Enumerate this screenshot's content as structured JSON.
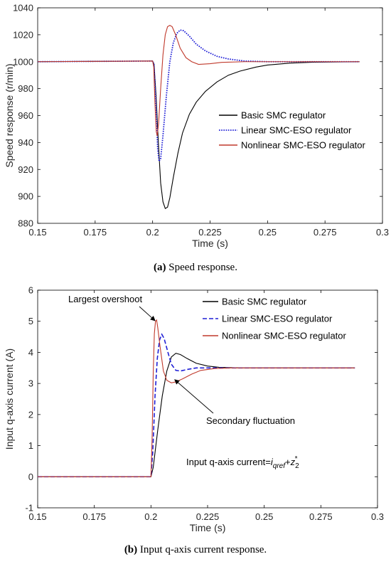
{
  "chart_data": [
    {
      "type": "line",
      "panel": "a",
      "caption_label": "(a)",
      "caption_text": " Speed response.",
      "xlabel": "Time (s)",
      "ylabel": "Speed response (r/min)",
      "xlim": [
        0.15,
        0.3
      ],
      "ylim": [
        880,
        1040
      ],
      "xticks": [
        "0.15",
        "0.175",
        "0.2",
        "0.225",
        "0.25",
        "0.275",
        "0.3"
      ],
      "yticks": [
        "880",
        "900",
        "920",
        "940",
        "960",
        "980",
        "1000",
        "1020",
        "1040"
      ],
      "legend_position": "center-right",
      "series": [
        {
          "name": "Basic SMC regulator",
          "color": "#000000",
          "style": "solid",
          "points": [
            [
              0.15,
              1000
            ],
            [
              0.2,
              1000.5
            ],
            [
              0.2006,
              998
            ],
            [
              0.2015,
              975
            ],
            [
              0.2025,
              940
            ],
            [
              0.2035,
              910
            ],
            [
              0.2045,
              896
            ],
            [
              0.2055,
              891
            ],
            [
              0.2065,
              892
            ],
            [
              0.2075,
              899
            ],
            [
              0.209,
              914
            ],
            [
              0.211,
              932
            ],
            [
              0.213,
              947
            ],
            [
              0.216,
              961
            ],
            [
              0.219,
              970
            ],
            [
              0.223,
              978
            ],
            [
              0.228,
              985
            ],
            [
              0.233,
              990
            ],
            [
              0.238,
              993
            ],
            [
              0.245,
              996
            ],
            [
              0.25,
              997.5
            ],
            [
              0.26,
              999
            ],
            [
              0.27,
              999.6
            ],
            [
              0.29,
              1000
            ]
          ]
        },
        {
          "name": "Linear SMC-ESO regulator",
          "color": "#1f1fd6",
          "style": "dotted",
          "points": [
            [
              0.15,
              1000
            ],
            [
              0.2,
              1000.5
            ],
            [
              0.2006,
              998
            ],
            [
              0.2013,
              975
            ],
            [
              0.2022,
              935
            ],
            [
              0.2028,
              926
            ],
            [
              0.2035,
              928
            ],
            [
              0.2045,
              945
            ],
            [
              0.206,
              975
            ],
            [
              0.2075,
              1000
            ],
            [
              0.209,
              1014
            ],
            [
              0.2105,
              1021
            ],
            [
              0.212,
              1023.5
            ],
            [
              0.2135,
              1023
            ],
            [
              0.216,
              1019
            ],
            [
              0.219,
              1013
            ],
            [
              0.223,
              1008
            ],
            [
              0.228,
              1004
            ],
            [
              0.233,
              1002
            ],
            [
              0.24,
              1000.5
            ],
            [
              0.25,
              1000
            ],
            [
              0.29,
              1000
            ]
          ]
        },
        {
          "name": "Nonlinear SMC-ESO regulator",
          "color": "#c0392b",
          "style": "solid",
          "points": [
            [
              0.15,
              1000
            ],
            [
              0.2,
              1000.5
            ],
            [
              0.2005,
              996
            ],
            [
              0.201,
              970
            ],
            [
              0.2016,
              948
            ],
            [
              0.202,
              945
            ],
            [
              0.2026,
              954
            ],
            [
              0.2035,
              980
            ],
            [
              0.2045,
              1005
            ],
            [
              0.2055,
              1020
            ],
            [
              0.2065,
              1026
            ],
            [
              0.2075,
              1027
            ],
            [
              0.2085,
              1026
            ],
            [
              0.21,
              1020
            ],
            [
              0.212,
              1010
            ],
            [
              0.2145,
              1003
            ],
            [
              0.217,
              1000
            ],
            [
              0.22,
              998
            ],
            [
              0.225,
              998.5
            ],
            [
              0.23,
              999.5
            ],
            [
              0.24,
              1000
            ],
            [
              0.29,
              1000
            ]
          ]
        }
      ]
    },
    {
      "type": "line",
      "panel": "b",
      "caption_label": "(b)",
      "caption_text": " Input q-axis current response.",
      "xlabel": "Time (s)",
      "ylabel": "Input q-axis current (A)",
      "xlim": [
        0.15,
        0.3
      ],
      "ylim": [
        -1,
        6
      ],
      "xticks": [
        "0.15",
        "0.175",
        "0.2",
        "0.225",
        "0.25",
        "0.275",
        "0.3"
      ],
      "yticks": [
        "-1",
        "0",
        "1",
        "2",
        "3",
        "4",
        "5",
        "6"
      ],
      "legend_position": "top-right",
      "annotations": {
        "overshoot": "Largest overshoot",
        "fluctuation": "Secondary fluctuation",
        "equation_prefix": "Input q-axis current=",
        "equation_i": "i",
        "equation_i_sub": "qref",
        "equation_plus": "+",
        "equation_z": "z",
        "equation_z_sub": "2",
        "equation_z_sup": "*"
      },
      "series": [
        {
          "name": "Basic SMC regulator",
          "color": "#000000",
          "style": "solid",
          "points": [
            [
              0.15,
              0
            ],
            [
              0.2,
              0
            ],
            [
              0.201,
              0.3
            ],
            [
              0.203,
              1.5
            ],
            [
              0.205,
              2.6
            ],
            [
              0.207,
              3.4
            ],
            [
              0.209,
              3.85
            ],
            [
              0.211,
              3.97
            ],
            [
              0.213,
              3.93
            ],
            [
              0.216,
              3.8
            ],
            [
              0.22,
              3.65
            ],
            [
              0.225,
              3.56
            ],
            [
              0.23,
              3.52
            ],
            [
              0.24,
              3.5
            ],
            [
              0.29,
              3.5
            ]
          ]
        },
        {
          "name": "Linear SMC-ESO regulator",
          "color": "#1f1fd6",
          "style": "dashed",
          "points": [
            [
              0.15,
              0
            ],
            [
              0.2,
              0
            ],
            [
              0.2008,
              0.8
            ],
            [
              0.2018,
              2.6
            ],
            [
              0.2028,
              3.8
            ],
            [
              0.2038,
              4.4
            ],
            [
              0.2048,
              4.58
            ],
            [
              0.2058,
              4.45
            ],
            [
              0.2075,
              4
            ],
            [
              0.209,
              3.62
            ],
            [
              0.211,
              3.42
            ],
            [
              0.213,
              3.4
            ],
            [
              0.216,
              3.45
            ],
            [
              0.22,
              3.5
            ],
            [
              0.29,
              3.5
            ]
          ]
        },
        {
          "name": "Nonlinear SMC-ESO regulator",
          "color": "#c0392b",
          "style": "solid",
          "points": [
            [
              0.15,
              0
            ],
            [
              0.2,
              0
            ],
            [
              0.2005,
              1.2
            ],
            [
              0.201,
              3.3
            ],
            [
              0.2015,
              4.6
            ],
            [
              0.202,
              5.0
            ],
            [
              0.2025,
              5.04
            ],
            [
              0.203,
              4.8
            ],
            [
              0.204,
              4.2
            ],
            [
              0.2055,
              3.4
            ],
            [
              0.207,
              3.1
            ],
            [
              0.209,
              3.02
            ],
            [
              0.211,
              3.05
            ],
            [
              0.214,
              3.15
            ],
            [
              0.218,
              3.3
            ],
            [
              0.222,
              3.42
            ],
            [
              0.228,
              3.48
            ],
            [
              0.235,
              3.5
            ],
            [
              0.29,
              3.5
            ]
          ]
        }
      ]
    }
  ]
}
